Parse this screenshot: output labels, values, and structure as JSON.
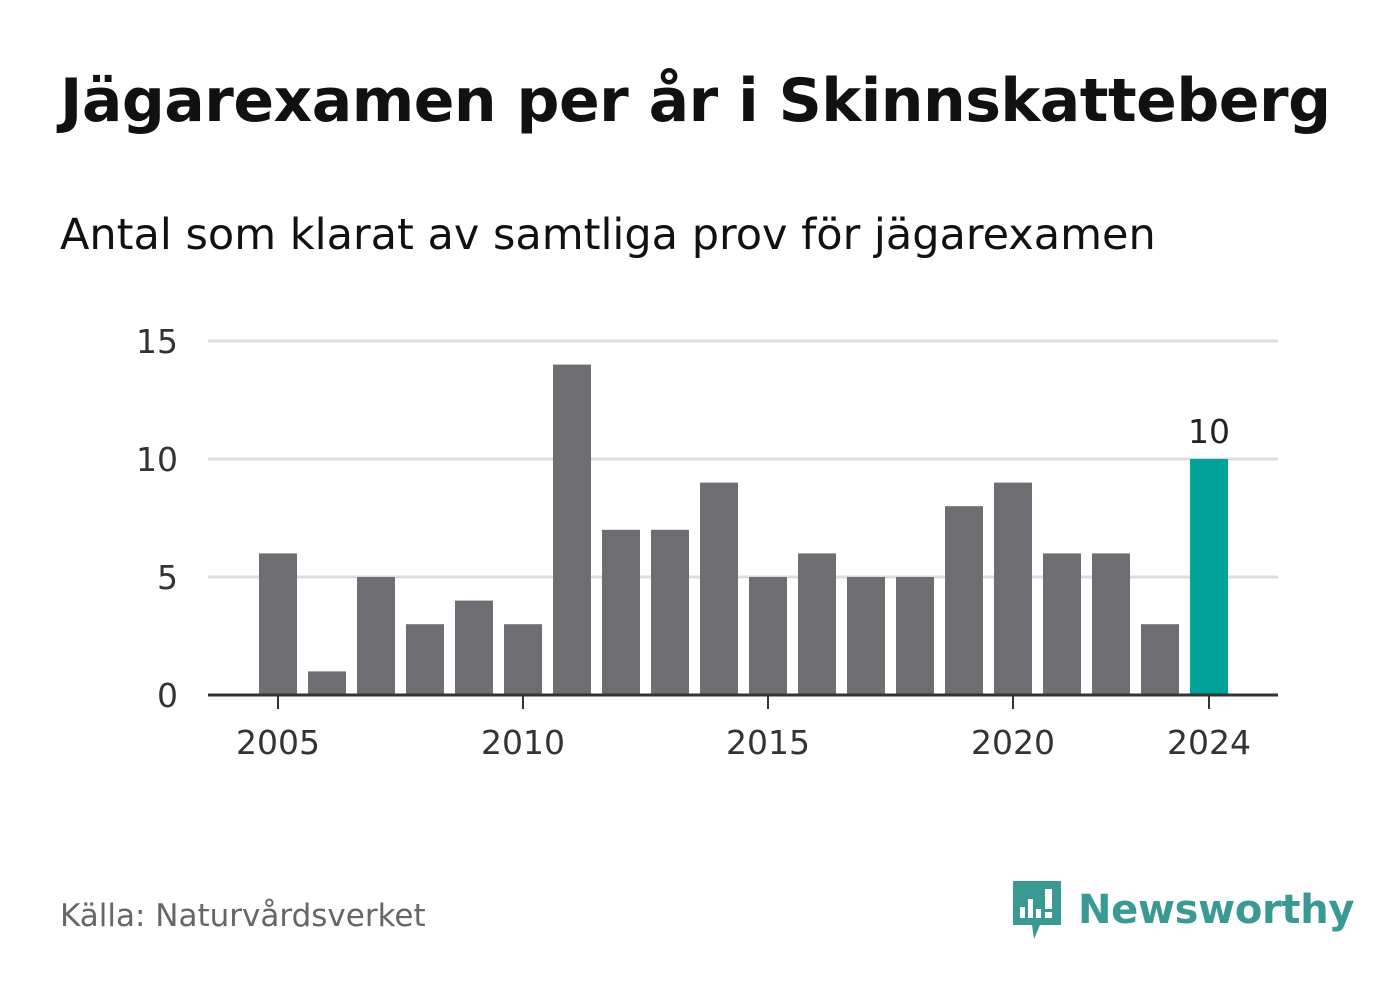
{
  "title": "Jägarexamen per år i Skinnskatteberg",
  "subtitle": "Antal som klarat av samtliga prov för jägarexamen",
  "source": "Källa: Naturvårdsverket",
  "brand": {
    "name": "Newsworthy",
    "icon": "newsworthy-logo-icon",
    "color": "#3a9a93"
  },
  "colors": {
    "bar": "#6e6d72",
    "highlight": "#00a398",
    "grid": "#dddddd",
    "axis": "#333333"
  },
  "chart_data": {
    "type": "bar",
    "categories": [
      2005,
      2006,
      2007,
      2008,
      2009,
      2010,
      2011,
      2012,
      2013,
      2014,
      2015,
      2016,
      2017,
      2018,
      2019,
      2020,
      2021,
      2022,
      2023,
      2024
    ],
    "values": [
      6,
      1,
      5,
      3,
      4,
      3,
      14,
      7,
      7,
      9,
      5,
      6,
      5,
      5,
      8,
      9,
      6,
      6,
      3,
      10
    ],
    "ylim": [
      0,
      15
    ],
    "yticks": [
      0,
      5,
      10,
      15
    ],
    "xticks": [
      2005,
      2010,
      2015,
      2020,
      2024
    ],
    "highlight": {
      "category": 2024,
      "label": "10"
    },
    "grid": true
  }
}
